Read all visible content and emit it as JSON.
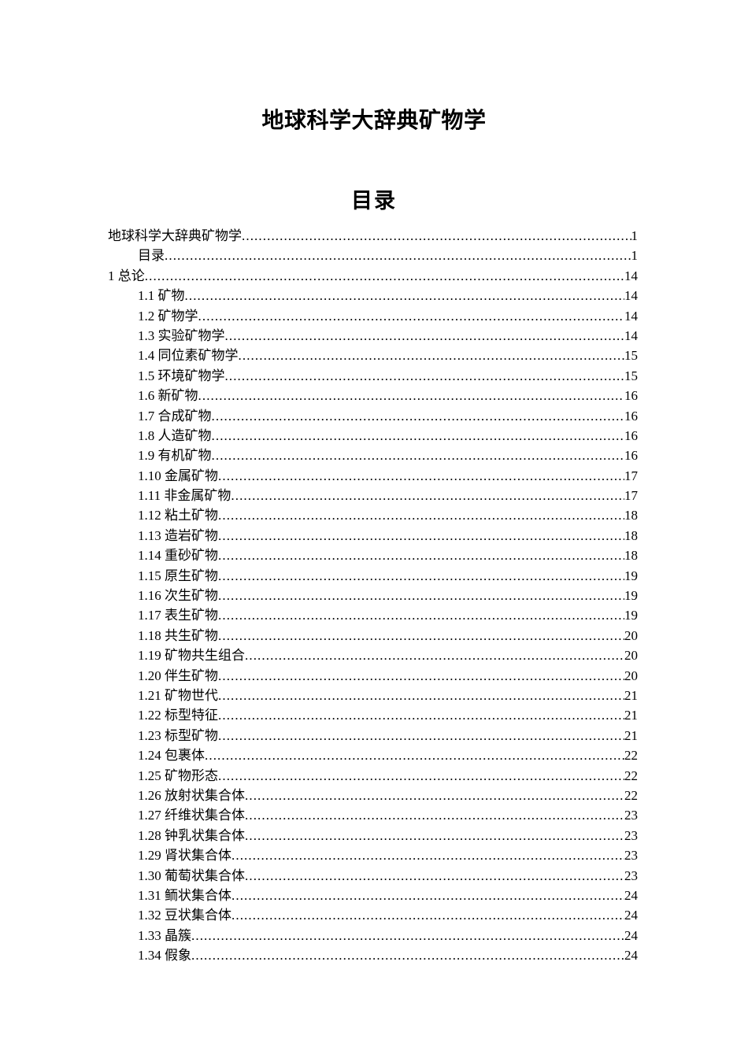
{
  "document": {
    "title": "地球科学大辞典矿物学",
    "toc_heading": "目录"
  },
  "toc": {
    "entries": [
      {
        "level": 1,
        "label": "地球科学大辞典矿物学",
        "page": "1"
      },
      {
        "level": 2,
        "label": "目录",
        "page": "1"
      },
      {
        "level": 1,
        "label": "1 总论",
        "page": "14"
      },
      {
        "level": 2,
        "label": "1.1 矿物",
        "page": "14"
      },
      {
        "level": 2,
        "label": "1.2 矿物学",
        "page": "14"
      },
      {
        "level": 2,
        "label": "1.3 实验矿物学",
        "page": "14"
      },
      {
        "level": 2,
        "label": "1.4 同位素矿物学",
        "page": "15"
      },
      {
        "level": 2,
        "label": "1.5 环境矿物学",
        "page": "15"
      },
      {
        "level": 2,
        "label": "1.6 新矿物",
        "page": "16"
      },
      {
        "level": 2,
        "label": "1.7 合成矿物",
        "page": "16"
      },
      {
        "level": 2,
        "label": "1.8 人造矿物",
        "page": "16"
      },
      {
        "level": 2,
        "label": "1.9 有机矿物",
        "page": "16"
      },
      {
        "level": 2,
        "label": "1.10 金属矿物",
        "page": "17"
      },
      {
        "level": 2,
        "label": "1.11 非金属矿物",
        "page": "17"
      },
      {
        "level": 2,
        "label": "1.12 粘土矿物",
        "page": "18"
      },
      {
        "level": 2,
        "label": "1.13 造岩矿物",
        "page": "18"
      },
      {
        "level": 2,
        "label": "1.14 重砂矿物",
        "page": "18"
      },
      {
        "level": 2,
        "label": "1.15 原生矿物",
        "page": "19"
      },
      {
        "level": 2,
        "label": "1.16 次生矿物",
        "page": "19"
      },
      {
        "level": 2,
        "label": "1.17 表生矿物",
        "page": "19"
      },
      {
        "level": 2,
        "label": "1.18 共生矿物",
        "page": "20"
      },
      {
        "level": 2,
        "label": "1.19 矿物共生组合",
        "page": "20"
      },
      {
        "level": 2,
        "label": "1.20 伴生矿物",
        "page": "20"
      },
      {
        "level": 2,
        "label": "1.21 矿物世代",
        "page": "21"
      },
      {
        "level": 2,
        "label": "1.22 标型特征",
        "page": "21"
      },
      {
        "level": 2,
        "label": "1.23 标型矿物",
        "page": "21"
      },
      {
        "level": 2,
        "label": "1.24 包裹体",
        "page": "22"
      },
      {
        "level": 2,
        "label": "1.25 矿物形态",
        "page": "22"
      },
      {
        "level": 2,
        "label": "1.26 放射状集合体",
        "page": "22"
      },
      {
        "level": 2,
        "label": "1.27 纤维状集合体",
        "page": "23"
      },
      {
        "level": 2,
        "label": "1.28 钟乳状集合体",
        "page": "23"
      },
      {
        "level": 2,
        "label": "1.29 肾状集合体",
        "page": "23"
      },
      {
        "level": 2,
        "label": "1.30 葡萄状集合体",
        "page": "23"
      },
      {
        "level": 2,
        "label": "1.31 鲕状集合体",
        "page": "24"
      },
      {
        "level": 2,
        "label": "1.32 豆状集合体",
        "page": "24"
      },
      {
        "level": 2,
        "label": "1.33 晶簇",
        "page": "24"
      },
      {
        "level": 2,
        "label": "1.34 假象",
        "page": "24"
      }
    ]
  }
}
